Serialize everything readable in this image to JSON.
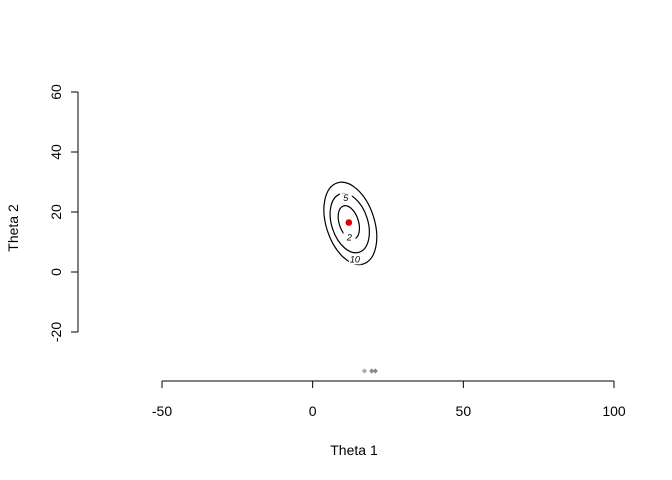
{
  "chart_data": {
    "type": "contour",
    "title": "",
    "xlabel": "Theta 1",
    "ylabel": "Theta 2",
    "xlim": [
      -50,
      100
    ],
    "ylim": [
      -20,
      60
    ],
    "x_ticks": [
      -50,
      0,
      50,
      100
    ],
    "y_ticks": [
      -20,
      0,
      20,
      40,
      60
    ],
    "x_tick_labels": [
      "-50",
      "0",
      "50",
      "100"
    ],
    "y_tick_labels": [
      "-20",
      "0",
      "20",
      "40",
      "60"
    ],
    "grid": false,
    "legend": "none",
    "center_point": {
      "x": 12,
      "y": 16.5,
      "color": "#e00000"
    },
    "contours": [
      {
        "level": 2,
        "label": "2",
        "center": [
          12,
          16.5
        ],
        "rx": 3.2,
        "ry": 5.8,
        "tilt_deg": 18,
        "label_at": [
          12.2,
          11.5
        ]
      },
      {
        "level": 5,
        "label": "5",
        "center": [
          12.3,
          16.3
        ],
        "rx": 6.0,
        "ry": 10.2,
        "tilt_deg": 18,
        "label_at": [
          11,
          24.6
        ]
      },
      {
        "level": 10,
        "label": "10",
        "center": [
          12.5,
          16.2
        ],
        "rx": 8.0,
        "ry": 14.2,
        "tilt_deg": 18,
        "label_at": [
          14,
          4.2
        ]
      }
    ],
    "rug_points": [
      {
        "x": 17.2,
        "y": -33,
        "color": "#aaaaaa"
      },
      {
        "x": 19.6,
        "y": -33,
        "color": "#888888"
      },
      {
        "x": 20.8,
        "y": -33,
        "color": "#888888"
      }
    ]
  }
}
